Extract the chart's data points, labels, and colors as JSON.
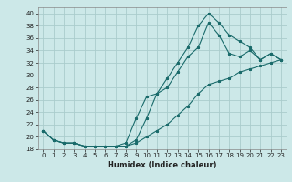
{
  "xlabel": "Humidex (Indice chaleur)",
  "ylabel": "",
  "bg_color": "#cce8e8",
  "grid_color": "#aacccc",
  "line_color": "#1a6b6b",
  "xlim": [
    -0.5,
    23.5
  ],
  "ylim": [
    18,
    41
  ],
  "yticks": [
    18,
    20,
    22,
    24,
    26,
    28,
    30,
    32,
    34,
    36,
    38,
    40
  ],
  "xticks": [
    0,
    1,
    2,
    3,
    4,
    5,
    6,
    7,
    8,
    9,
    10,
    11,
    12,
    13,
    14,
    15,
    16,
    17,
    18,
    19,
    20,
    21,
    22,
    23
  ],
  "series1_x": [
    0,
    1,
    2,
    3,
    4,
    5,
    6,
    7,
    8,
    9,
    10,
    11,
    12,
    13,
    14,
    15,
    16,
    17,
    18,
    19,
    20,
    21,
    22,
    23
  ],
  "series1_y": [
    21.0,
    19.5,
    19.0,
    19.0,
    18.5,
    18.5,
    18.5,
    18.5,
    18.5,
    19.5,
    23.0,
    27.0,
    29.5,
    32.0,
    34.5,
    38.0,
    40.0,
    38.5,
    36.5,
    35.5,
    34.5,
    32.5,
    33.5,
    32.5
  ],
  "series3_x": [
    0,
    1,
    2,
    3,
    4,
    5,
    6,
    7,
    8,
    9,
    10,
    11,
    12,
    13,
    14,
    15,
    16,
    17,
    18,
    19,
    20,
    21,
    22,
    23
  ],
  "series3_y": [
    21.0,
    19.5,
    19.0,
    19.0,
    18.5,
    18.5,
    18.5,
    18.5,
    19.0,
    23.0,
    26.5,
    27.0,
    28.0,
    30.5,
    33.0,
    34.5,
    38.5,
    36.5,
    33.5,
    33.0,
    34.0,
    32.5,
    33.5,
    32.5
  ],
  "series4_x": [
    0,
    1,
    2,
    3,
    4,
    5,
    6,
    7,
    8,
    9,
    10,
    11,
    12,
    13,
    14,
    15,
    16,
    17,
    18,
    19,
    20,
    21,
    22,
    23
  ],
  "series4_y": [
    21.0,
    19.5,
    19.0,
    19.0,
    18.5,
    18.5,
    18.5,
    18.5,
    18.5,
    19.0,
    20.0,
    21.0,
    22.0,
    23.5,
    25.0,
    27.0,
    28.5,
    29.0,
    29.5,
    30.5,
    31.0,
    31.5,
    32.0,
    32.5
  ],
  "xlabel_fontsize": 6,
  "tick_fontsize": 5,
  "line_width": 0.8,
  "marker_size": 2.0
}
